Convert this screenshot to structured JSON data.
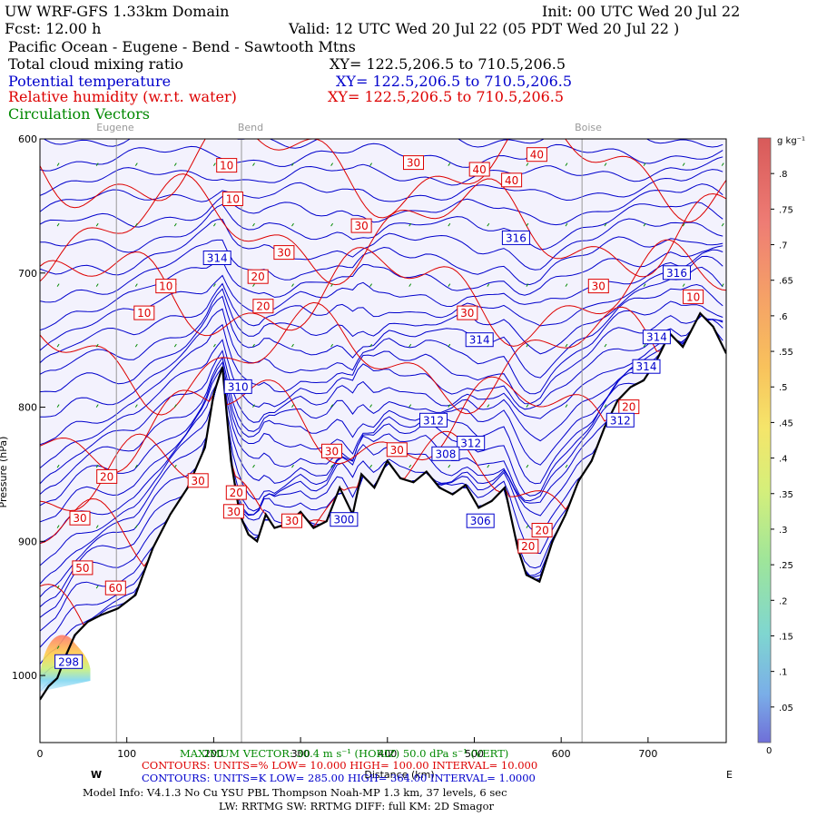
{
  "header": {
    "title": "UW WRF-GFS 1.33km Domain",
    "init": "Init: 00 UTC Wed 20 Jul 22",
    "fcst": "Fcst:   12.00 h",
    "valid": "Valid: 12 UTC Wed 20 Jul 22  (05 PDT Wed 20 Jul 22  )",
    "region": "Pacific Ocean - Eugene - Bend - Sawtooth Mtns",
    "fields": [
      {
        "name": "Total cloud mixing ratio",
        "xy": "XY= 122.5,206.5 to 710.5,206.5",
        "color": "#000000"
      },
      {
        "name": "Potential temperature",
        "xy": "XY= 122.5,206.5 to 710.5,206.5",
        "color": "#0000cc"
      },
      {
        "name": "Relative humidity (w.r.t. water)",
        "xy": "XY= 122.5,206.5 to 710.5,206.5",
        "color": "#dd0000"
      },
      {
        "name": "Circulation Vectors",
        "xy": "",
        "color": "#008800"
      }
    ]
  },
  "cities": [
    "Eugene",
    "Bend",
    "Boise"
  ],
  "chart_data": {
    "type": "cross-section",
    "x_axis": {
      "label": "Distance (km)",
      "ticks": [
        "0",
        "100",
        "200",
        "300",
        "400",
        "500",
        "600",
        "700"
      ],
      "range": [
        0,
        790
      ],
      "left_end": "W",
      "right_end": "E"
    },
    "y_axis": {
      "label": "Pressure (hPa)",
      "ticks": [
        "600",
        "700",
        "800",
        "900",
        "1000"
      ],
      "range": [
        1050,
        600
      ]
    },
    "colorbar": {
      "unit": "g kg⁻¹",
      "ticks": [
        ".8",
        ".75",
        ".7",
        ".65",
        ".6",
        ".55",
        ".5",
        ".45",
        ".4",
        ".35",
        ".3",
        ".25",
        ".2",
        ".15",
        ".1",
        ".05"
      ],
      "bottom_label": "0",
      "range": [
        0,
        0.85
      ]
    },
    "city_markers_km": [
      {
        "name": "Eugene",
        "x": 88
      },
      {
        "name": "Bend",
        "x": 232
      },
      {
        "name": "Boise",
        "x": 624
      }
    ],
    "terrain_pressure": {
      "x": [
        0,
        10,
        20,
        30,
        40,
        55,
        70,
        90,
        110,
        130,
        150,
        170,
        190,
        200,
        210,
        220,
        230,
        240,
        250,
        260,
        270,
        285,
        300,
        315,
        330,
        345,
        360,
        370,
        385,
        400,
        415,
        430,
        445,
        460,
        475,
        490,
        505,
        520,
        535,
        550,
        560,
        575,
        590,
        605,
        620,
        635,
        650,
        665,
        680,
        695,
        710,
        725,
        740,
        760,
        775,
        790
      ],
      "p": [
        1018,
        1008,
        1002,
        985,
        970,
        960,
        955,
        950,
        940,
        905,
        880,
        860,
        830,
        790,
        770,
        840,
        880,
        895,
        900,
        880,
        890,
        887,
        878,
        890,
        885,
        860,
        880,
        850,
        860,
        840,
        853,
        856,
        848,
        860,
        865,
        858,
        875,
        870,
        860,
        905,
        925,
        930,
        900,
        880,
        855,
        840,
        815,
        795,
        785,
        780,
        765,
        745,
        755,
        730,
        740,
        760
      ]
    },
    "rh_contour_labels": [
      {
        "v": "10",
        "x": 215,
        "p": 620
      },
      {
        "v": "10",
        "x": 222,
        "p": 645
      },
      {
        "v": "10",
        "x": 145,
        "p": 710
      },
      {
        "v": "10",
        "x": 120,
        "p": 730
      },
      {
        "v": "20",
        "x": 251,
        "p": 703
      },
      {
        "v": "20",
        "x": 257,
        "p": 725
      },
      {
        "v": "30",
        "x": 281,
        "p": 685
      },
      {
        "v": "30",
        "x": 370,
        "p": 665
      },
      {
        "v": "30",
        "x": 430,
        "p": 618
      },
      {
        "v": "40",
        "x": 506,
        "p": 623
      },
      {
        "v": "40",
        "x": 543,
        "p": 631
      },
      {
        "v": "40",
        "x": 572,
        "p": 612
      },
      {
        "v": "30",
        "x": 492,
        "p": 730
      },
      {
        "v": "30",
        "x": 643,
        "p": 710
      },
      {
        "v": "30",
        "x": 336,
        "p": 833
      },
      {
        "v": "30",
        "x": 182,
        "p": 855
      },
      {
        "v": "30",
        "x": 411,
        "p": 832
      },
      {
        "v": "20",
        "x": 77,
        "p": 852
      },
      {
        "v": "30",
        "x": 46,
        "p": 883
      },
      {
        "v": "50",
        "x": 49,
        "p": 920
      },
      {
        "v": "60",
        "x": 87,
        "p": 935
      },
      {
        "v": "20",
        "x": 226,
        "p": 864
      },
      {
        "v": "30",
        "x": 223,
        "p": 878
      },
      {
        "v": "30",
        "x": 290,
        "p": 885
      },
      {
        "v": "20",
        "x": 578,
        "p": 892
      },
      {
        "v": "20",
        "x": 562,
        "p": 904
      },
      {
        "v": "20",
        "x": 678,
        "p": 800
      },
      {
        "v": "10",
        "x": 752,
        "p": 718
      }
    ],
    "theta_contour_labels": [
      {
        "v": "314",
        "x": 204,
        "p": 689
      },
      {
        "v": "316",
        "x": 548,
        "p": 674
      },
      {
        "v": "316",
        "x": 733,
        "p": 700
      },
      {
        "v": "314",
        "x": 506,
        "p": 750
      },
      {
        "v": "314",
        "x": 710,
        "p": 748
      },
      {
        "v": "314",
        "x": 698,
        "p": 770
      },
      {
        "v": "310",
        "x": 228,
        "p": 785
      },
      {
        "v": "312",
        "x": 453,
        "p": 810
      },
      {
        "v": "312",
        "x": 496,
        "p": 827
      },
      {
        "v": "308",
        "x": 467,
        "p": 835
      },
      {
        "v": "312",
        "x": 668,
        "p": 810
      },
      {
        "v": "306",
        "x": 507,
        "p": 885
      },
      {
        "v": "300",
        "x": 350,
        "p": 884
      },
      {
        "v": "298",
        "x": 33,
        "p": 990
      }
    ]
  },
  "footer": {
    "max_vector": "MAXIMUM VECTOR: 30.4 m s⁻¹ (HORIZ)   50.0 dPa s⁻¹ (VERT)",
    "rh_contours": "CONTOURS:  UNITS=%  LOW=   10.000     HIGH=   100.00       INTERVAL=    10.000",
    "theta_contours": "CONTOURS:  UNITS=K  LOW=   285.00     HIGH=   364.00       INTERVAL=    1.0000",
    "model_info": "Model Info: V4.1.3    No Cu    YSU PBL  Thompson     Noah-MP    1.3 km,   37 levels,    6 sec",
    "model_info2": "LW: RRTMG SW: RRTMG    DIFF: full    KM: 2D Smagor"
  },
  "colors": {
    "rh": "#dd0000",
    "theta": "#0000cc",
    "terrain": "#000000",
    "vectors": "#008800",
    "plot_bg": "#f3f2fd"
  }
}
